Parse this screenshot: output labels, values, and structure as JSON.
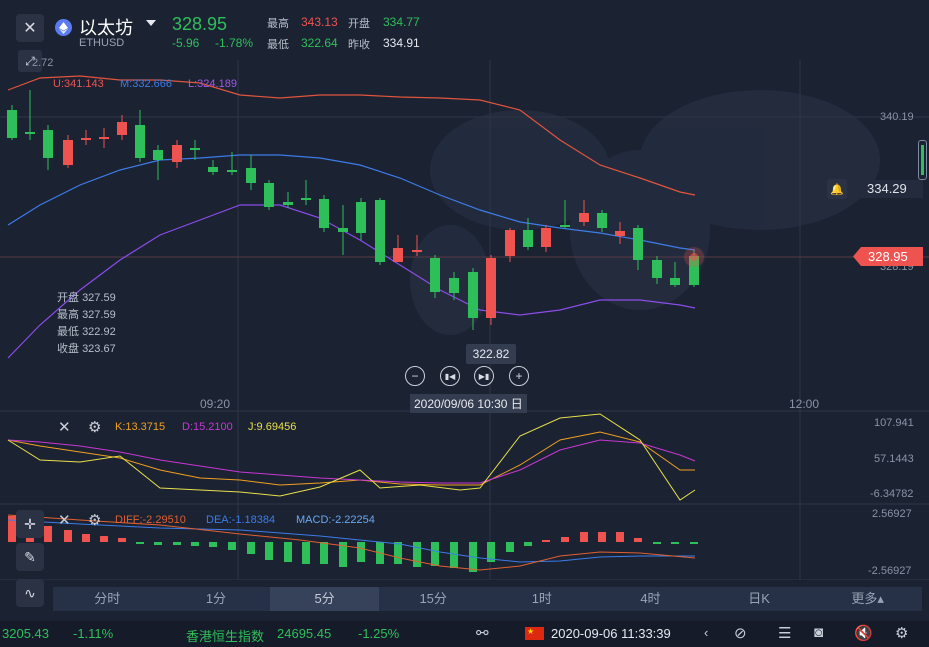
{
  "header": {
    "title": "以太坊",
    "symbol": "ETHUSD",
    "price": "328.95",
    "change": "-5.96",
    "change_pct": "-1.78%",
    "high_label": "最高",
    "high": "343.13",
    "open_label": "开盘",
    "open": "334.77",
    "low_label": "最低",
    "low": "322.64",
    "prev_close_label": "昨收",
    "prev_close": "334.91"
  },
  "main_chart": {
    "boll": {
      "u": "U:341.143",
      "m": "M:332.666",
      "l": "L:324.189"
    },
    "top_left_value": "2.72",
    "right_axis_top": "340.19",
    "alert_price": "334.29",
    "current_price_tag": "328.95",
    "current_price_behind": "328.19",
    "low_marker": "322.82",
    "tooltip": {
      "open_label": "开盘",
      "open": "327.59",
      "high_label": "最高",
      "high": "327.59",
      "low_label": "最低",
      "low": "322.92",
      "close_label": "收盘",
      "close": "323.67"
    },
    "time_axis": {
      "t1": "09:20",
      "cursor": "2020/09/06 10:30 日",
      "t2": "12:00"
    },
    "colors": {
      "up": "#ef5350",
      "down": "#2fbf5a",
      "upper": "#e0553c",
      "mid": "#3d7ce8",
      "lower": "#8a4de8"
    }
  },
  "kdj": {
    "k": "K:13.3715",
    "d": "D:15.2100",
    "j": "J:9.69456",
    "axis": [
      "107.941",
      "57.1443",
      "-6.34782"
    ]
  },
  "macd": {
    "diff": "DIFF:-2.29510",
    "dea": "DEA:-1.18384",
    "macd": "MACD:-2.22254",
    "axis": [
      "2.56927",
      "-2.56927"
    ]
  },
  "tabs": [
    "分时",
    "1分",
    "5分",
    "15分",
    "1时",
    "4时",
    "日K",
    "更多▴"
  ],
  "status": {
    "ticker_value": "3205.43",
    "ticker_pct": "-1.11%",
    "index_name": "香港恒生指数",
    "index_value": "24695.45",
    "index_pct": "-1.25%",
    "datetime": "2020-09-06 11:33:39"
  }
}
